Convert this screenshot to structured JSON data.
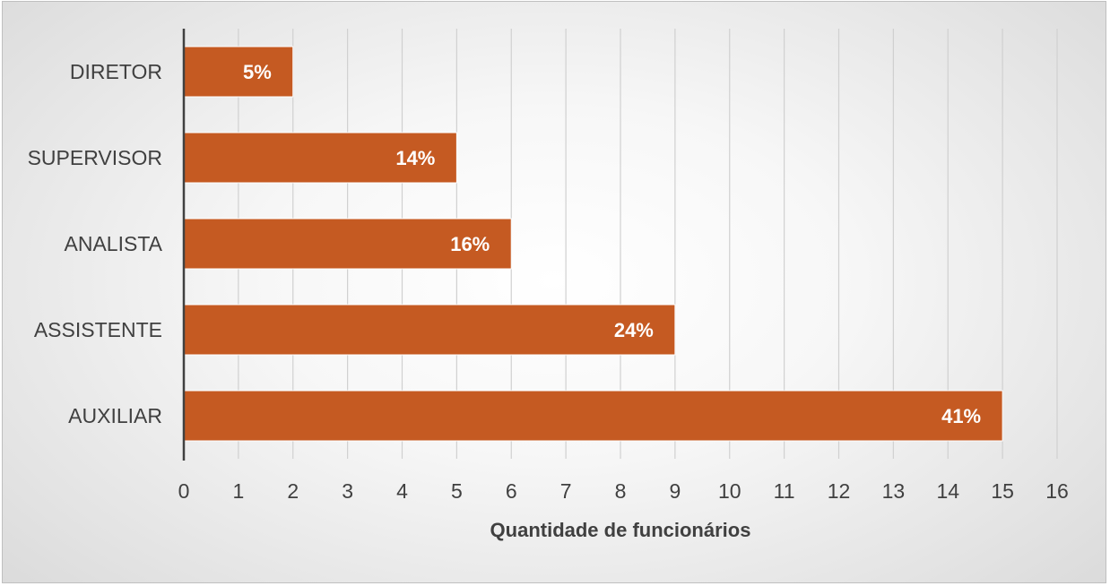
{
  "chart_data": {
    "type": "bar",
    "orientation": "horizontal",
    "categories": [
      "DIRETOR",
      "SUPERVISOR",
      "ANALISTA",
      "ASSISTENTE",
      "AUXILIAR"
    ],
    "values": [
      2,
      5,
      6,
      9,
      15
    ],
    "data_labels": [
      "5%",
      "14%",
      "16%",
      "24%",
      "41%"
    ],
    "title": "",
    "xlabel": "Quantidade de funcionários",
    "ylabel": "",
    "xlim": [
      0,
      16
    ],
    "xticks": [
      "0",
      "1",
      "2",
      "3",
      "4",
      "5",
      "6",
      "7",
      "8",
      "9",
      "10",
      "11",
      "12",
      "13",
      "14",
      "15",
      "16"
    ],
    "grid": "vertical",
    "legend": "none",
    "bar_color": "#c55a22",
    "gridline_color": "#d0d0d0",
    "axis_color": "#404040"
  }
}
